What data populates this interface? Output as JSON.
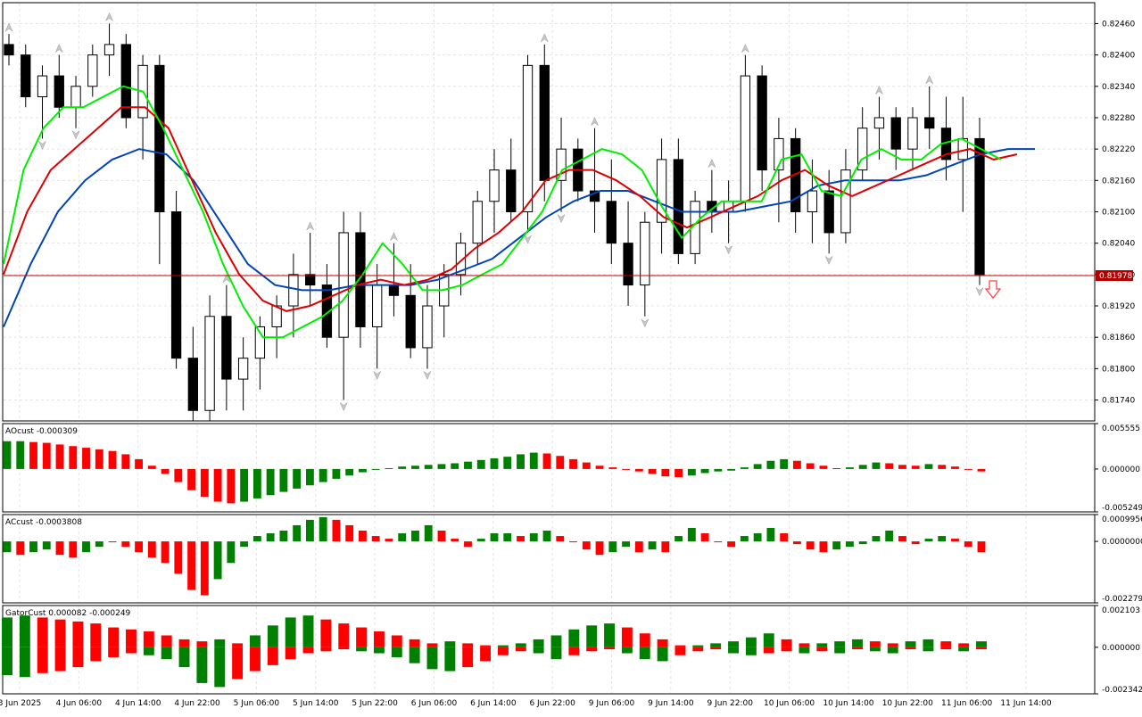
{
  "chart_data": [
    {
      "type": "candlestick",
      "panel": "price",
      "ylim": [
        0.817,
        0.825
      ],
      "y_ticks": [
        "0.82460",
        "0.82400",
        "0.82340",
        "0.82280",
        "0.82220",
        "0.82160",
        "0.82100",
        "0.82040",
        "0.81980",
        "0.81920",
        "0.81860",
        "0.81800",
        "0.81740"
      ],
      "current_price": "0.81978",
      "current_price_value": 0.81978,
      "grid": true,
      "series_colors": {
        "fast_ma": "#00ee00",
        "mid_ma": "#dd0000",
        "slow_ma": "#0044bb",
        "bull_candle": "#ffffff",
        "bear_candle": "#000000",
        "price_line": "#cc0000",
        "sell_arrow": "#ff4444"
      },
      "fast_ma": [
        0.82,
        0.8218,
        0.8226,
        0.823,
        0.823,
        0.8232,
        0.8234,
        0.8233,
        0.8226,
        0.8218,
        0.821,
        0.82,
        0.8192,
        0.8186,
        0.8186,
        0.8188,
        0.819,
        0.8193,
        0.8198,
        0.8204,
        0.82,
        0.8195,
        0.8195,
        0.8196,
        0.8198,
        0.82,
        0.8205,
        0.821,
        0.8218,
        0.822,
        0.8222,
        0.8221,
        0.8218,
        0.8211,
        0.8205,
        0.8209,
        0.8212,
        0.8212,
        0.8212,
        0.822,
        0.8221,
        0.8214,
        0.8213,
        0.822,
        0.8222,
        0.822,
        0.822,
        0.8223,
        0.8224,
        0.8222,
        0.822
      ],
      "mid_ma": [
        0.8198,
        0.821,
        0.8218,
        0.8222,
        0.8226,
        0.823,
        0.823,
        0.8226,
        0.8216,
        0.8206,
        0.8198,
        0.8193,
        0.8191,
        0.8192,
        0.8194,
        0.8196,
        0.8197,
        0.8196,
        0.8197,
        0.8199,
        0.8203,
        0.8206,
        0.821,
        0.8216,
        0.8218,
        0.8218,
        0.8216,
        0.8213,
        0.8209,
        0.8207,
        0.8209,
        0.8211,
        0.8213,
        0.8216,
        0.8218,
        0.8215,
        0.8213,
        0.8215,
        0.8217,
        0.8219,
        0.8221,
        0.8222,
        0.822,
        0.8221
      ],
      "slow_ma": [
        0.8188,
        0.82,
        0.821,
        0.8216,
        0.822,
        0.8222,
        0.8221,
        0.8216,
        0.8208,
        0.82,
        0.8196,
        0.8195,
        0.8195,
        0.8196,
        0.8196,
        0.8196,
        0.8197,
        0.8199,
        0.8201,
        0.8205,
        0.8209,
        0.8212,
        0.8214,
        0.8214,
        0.8212,
        0.821,
        0.821,
        0.821,
        0.8211,
        0.8212,
        0.8215,
        0.8216,
        0.8216,
        0.8216,
        0.8217,
        0.8219,
        0.8221,
        0.8222,
        0.8222
      ],
      "candles": [
        [
          0.8242,
          0.8244,
          0.8238,
          0.824
        ],
        [
          0.824,
          0.8242,
          0.823,
          0.8232
        ],
        [
          0.8232,
          0.8238,
          0.8224,
          0.8236
        ],
        [
          0.8236,
          0.824,
          0.8228,
          0.823
        ],
        [
          0.823,
          0.8236,
          0.8226,
          0.8234
        ],
        [
          0.8234,
          0.8242,
          0.8232,
          0.824
        ],
        [
          0.824,
          0.8246,
          0.8236,
          0.8242
        ],
        [
          0.8242,
          0.8244,
          0.8226,
          0.8228
        ],
        [
          0.8228,
          0.824,
          0.822,
          0.8238
        ],
        [
          0.8238,
          0.824,
          0.82,
          0.821
        ],
        [
          0.821,
          0.8214,
          0.818,
          0.8182
        ],
        [
          0.8182,
          0.8188,
          0.817,
          0.8172
        ],
        [
          0.8172,
          0.8194,
          0.817,
          0.819
        ],
        [
          0.819,
          0.8196,
          0.8172,
          0.8178
        ],
        [
          0.8178,
          0.8186,
          0.8172,
          0.8182
        ],
        [
          0.8182,
          0.819,
          0.8176,
          0.8188
        ],
        [
          0.8188,
          0.8194,
          0.8182,
          0.8192
        ],
        [
          0.8192,
          0.8202,
          0.8186,
          0.8198
        ],
        [
          0.8198,
          0.8206,
          0.8192,
          0.8196
        ],
        [
          0.8196,
          0.82,
          0.8184,
          0.8186
        ],
        [
          0.8186,
          0.821,
          0.8174,
          0.8206
        ],
        [
          0.8206,
          0.821,
          0.8184,
          0.8188
        ],
        [
          0.8188,
          0.82,
          0.818,
          0.8196
        ],
        [
          0.8196,
          0.8204,
          0.819,
          0.8194
        ],
        [
          0.8194,
          0.82,
          0.8182,
          0.8184
        ],
        [
          0.8184,
          0.8196,
          0.818,
          0.8192
        ],
        [
          0.8192,
          0.82,
          0.8186,
          0.8198
        ],
        [
          0.8198,
          0.8206,
          0.8194,
          0.8204
        ],
        [
          0.8204,
          0.8214,
          0.82,
          0.8212
        ],
        [
          0.8212,
          0.8222,
          0.8206,
          0.8218
        ],
        [
          0.8218,
          0.8224,
          0.8208,
          0.821
        ],
        [
          0.821,
          0.824,
          0.8206,
          0.8238
        ],
        [
          0.8238,
          0.8242,
          0.8212,
          0.8216
        ],
        [
          0.8216,
          0.8228,
          0.821,
          0.8222
        ],
        [
          0.8222,
          0.8224,
          0.8212,
          0.8214
        ],
        [
          0.8214,
          0.8226,
          0.8206,
          0.8212
        ],
        [
          0.8212,
          0.822,
          0.82,
          0.8204
        ],
        [
          0.8204,
          0.8212,
          0.8192,
          0.8196
        ],
        [
          0.8196,
          0.821,
          0.819,
          0.8208
        ],
        [
          0.8208,
          0.8224,
          0.8202,
          0.822
        ],
        [
          0.822,
          0.8224,
          0.82,
          0.8202
        ],
        [
          0.8202,
          0.8214,
          0.82,
          0.8212
        ],
        [
          0.8212,
          0.8218,
          0.8206,
          0.821
        ],
        [
          0.821,
          0.8216,
          0.8204,
          0.8212
        ],
        [
          0.8212,
          0.824,
          0.821,
          0.8236
        ],
        [
          0.8236,
          0.8238,
          0.8214,
          0.8218
        ],
        [
          0.8218,
          0.8228,
          0.8208,
          0.8224
        ],
        [
          0.8224,
          0.8226,
          0.8206,
          0.821
        ],
        [
          0.821,
          0.822,
          0.8204,
          0.8214
        ],
        [
          0.8214,
          0.8218,
          0.8202,
          0.8206
        ],
        [
          0.8206,
          0.8222,
          0.8204,
          0.8218
        ],
        [
          0.8218,
          0.823,
          0.8216,
          0.8226
        ],
        [
          0.8226,
          0.8232,
          0.822,
          0.8228
        ],
        [
          0.8228,
          0.823,
          0.8218,
          0.8222
        ],
        [
          0.8222,
          0.823,
          0.8218,
          0.8228
        ],
        [
          0.8228,
          0.8234,
          0.8222,
          0.8226
        ],
        [
          0.8226,
          0.8232,
          0.8216,
          0.822
        ],
        [
          0.822,
          0.8232,
          0.821,
          0.8224
        ],
        [
          0.8224,
          0.8228,
          0.8196,
          0.8198
        ]
      ],
      "x_ticks": [
        "3 Jun 2025",
        "4 Jun 06:00",
        "4 Jun 14:00",
        "4 Jun 22:00",
        "5 Jun 06:00",
        "5 Jun 14:00",
        "5 Jun 22:00",
        "6 Jun 06:00",
        "6 Jun 14:00",
        "6 Jun 22:00",
        "9 Jun 06:00",
        "9 Jun 14:00",
        "9 Jun 22:00",
        "10 Jun 06:00",
        "10 Jun 14:00",
        "10 Jun 22:00",
        "11 Jun 06:00",
        "11 Jun 14:00"
      ]
    },
    {
      "type": "histogram",
      "panel": "ao",
      "label": "AOcust -0.000309",
      "ylim": [
        -0.005249,
        0.005555
      ],
      "y_ticks": [
        "0.005555",
        "0.000000",
        "-0.005249"
      ],
      "colors": {
        "up": "#008000",
        "down": "#ff0000"
      },
      "values": [
        0.0034,
        0.0034,
        0.0033,
        0.0032,
        0.003,
        0.0028,
        0.0026,
        0.0024,
        0.0022,
        0.0018,
        0.0012,
        0.0004,
        -0.0006,
        -0.0016,
        -0.0026,
        -0.0034,
        -0.004,
        -0.0042,
        -0.004,
        -0.0036,
        -0.0032,
        -0.0028,
        -0.0024,
        -0.002,
        -0.0016,
        -0.0012,
        -0.0008,
        -0.0004,
        -0.0001,
        0.0001,
        0.0003,
        0.0004,
        0.0005,
        0.0006,
        0.0007,
        0.0009,
        0.0011,
        0.0013,
        0.0015,
        0.0018,
        0.002,
        0.0019,
        0.0016,
        0.0012,
        0.0008,
        0.0004,
        0.0002,
        0.0,
        -0.0003,
        -0.0006,
        -0.0009,
        -0.001,
        -0.0008,
        -0.0005,
        -0.0003,
        -0.0002,
        0.0002,
        0.0006,
        0.001,
        0.0012,
        0.001,
        0.0007,
        0.0004,
        0.0001,
        0.0002,
        0.0005,
        0.0008,
        0.0007,
        0.0005,
        0.0004,
        0.0006,
        0.0005,
        0.0003,
        0.0,
        -0.0003
      ]
    },
    {
      "type": "histogram",
      "panel": "ac",
      "label": "ACcust -0.0003808",
      "ylim": [
        -0.0022796,
        0.0009956
      ],
      "y_ticks": [
        "0.0009956",
        "0.0000000",
        "-0.0022796"
      ],
      "colors": {
        "up": "#008000",
        "down": "#ff0000"
      },
      "values": [
        -0.0004,
        -0.0005,
        -0.0004,
        -0.0003,
        -0.0005,
        -0.0006,
        -0.0004,
        -0.0002,
        0.0,
        -0.0002,
        -0.0004,
        -0.0006,
        -0.0008,
        -0.0012,
        -0.0018,
        -0.002,
        -0.0014,
        -0.0008,
        -0.0002,
        0.0002,
        0.0003,
        0.0004,
        0.0006,
        0.0008,
        0.0009,
        0.0008,
        0.0006,
        0.0004,
        0.0002,
        0.0001,
        0.0003,
        0.0004,
        0.0006,
        0.0004,
        0.0001,
        -0.0002,
        0.0001,
        0.0003,
        0.0003,
        0.0002,
        0.0003,
        0.0004,
        0.0002,
        0.0,
        -0.0003,
        -0.0005,
        -0.0004,
        -0.0002,
        -0.0004,
        -0.0003,
        -0.0004,
        0.0002,
        0.0005,
        0.0003,
        0.0,
        -0.0002,
        0.0002,
        0.0003,
        0.0005,
        0.0003,
        -0.0001,
        -0.0003,
        -0.0004,
        -0.0003,
        -0.0002,
        -0.0001,
        0.0002,
        0.0004,
        0.0002,
        -0.0001,
        0.0001,
        0.0002,
        0.0001,
        -0.0002,
        -0.0004
      ]
    },
    {
      "type": "histogram_dual",
      "panel": "gator",
      "label": "GatorCust 0.000082 -0.000249",
      "ylim": [
        -0.002342,
        0.002103
      ],
      "y_ticks": [
        "0.002103",
        "0.000000",
        "-0.002342"
      ],
      "colors": {
        "up": "#008000",
        "down": "#ff0000"
      },
      "upper": [
        0.0015,
        0.0016,
        0.0015,
        0.0014,
        0.0013,
        0.0012,
        0.001,
        0.0009,
        0.0008,
        0.0006,
        0.0004,
        0.0003,
        0.0004,
        0.0002,
        0.0006,
        0.0011,
        0.0015,
        0.0016,
        0.0014,
        0.0012,
        0.001,
        0.0008,
        0.0006,
        0.0004,
        0.0002,
        0.0003,
        0.0002,
        0.0001,
        0.0001,
        0.0002,
        0.0004,
        0.0006,
        0.0009,
        0.0011,
        0.0012,
        0.001,
        0.0007,
        0.0004,
        0.0001,
        0.0001,
        0.0002,
        0.0003,
        0.0005,
        0.0007,
        0.0004,
        0.0002,
        0.0002,
        0.0003,
        0.0004,
        0.0003,
        0.0002,
        0.0003,
        0.0004,
        0.0003,
        0.0002,
        0.0003
      ],
      "lower": [
        -0.0014,
        -0.0015,
        -0.0013,
        -0.0012,
        -0.001,
        -0.0007,
        -0.0005,
        -0.0003,
        -0.0004,
        -0.0006,
        -0.001,
        -0.0018,
        -0.002,
        -0.0016,
        -0.0012,
        -0.0009,
        -0.0006,
        -0.0003,
        -0.0002,
        -0.0001,
        -0.0002,
        -0.0003,
        -0.0005,
        -0.0008,
        -0.0011,
        -0.0012,
        -0.001,
        -0.0007,
        -0.0004,
        -0.0002,
        -0.0003,
        -0.0006,
        -0.0004,
        -0.0002,
        -0.0001,
        -0.0003,
        -0.0006,
        -0.0007,
        -0.0004,
        -0.0002,
        -0.0001,
        -0.0003,
        -0.0004,
        -0.0003,
        -0.0002,
        -0.0003,
        -0.0002,
        -0.0003,
        -0.0001,
        -0.0002,
        -0.0003,
        -0.0001,
        -0.0002,
        -0.0001,
        -0.0002,
        -0.0001
      ]
    }
  ]
}
